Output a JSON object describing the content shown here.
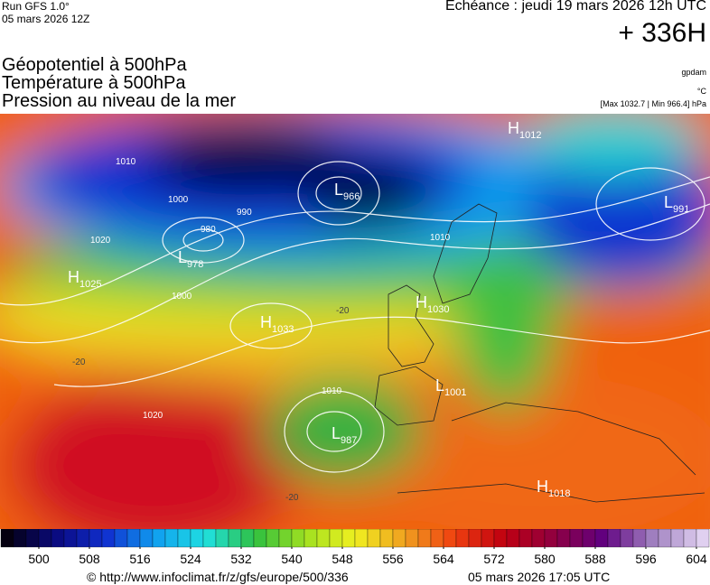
{
  "header": {
    "run": "Run GFS 1.0°",
    "run_date": "05 mars 2026 12Z",
    "valid": "Echéance : jeudi 19 mars 2026 12h UTC",
    "lead": "+ 336H"
  },
  "titles": [
    "Géopotentiel à 500hPa",
    "Température à 500hPa",
    "Pression au niveau de la mer"
  ],
  "units": {
    "geo": "gpdam",
    "temp": "°C",
    "pressure": "[Max 1032.7 | Min 966.4] hPa"
  },
  "centers": [
    {
      "kind": "H",
      "value": "1012"
    },
    {
      "kind": "L",
      "value": "991"
    },
    {
      "kind": "L",
      "value": "966"
    },
    {
      "kind": "L",
      "value": "978"
    },
    {
      "kind": "H",
      "value": "1025"
    },
    {
      "kind": "H",
      "value": "1033"
    },
    {
      "kind": "H",
      "value": "1030"
    },
    {
      "kind": "L",
      "value": "1001"
    },
    {
      "kind": "L",
      "value": "987"
    },
    {
      "kind": "H",
      "value": "1018"
    }
  ],
  "isobar_labels": [
    "1010",
    "1000",
    "990",
    "980",
    "1010",
    "1020",
    "1020",
    "1010",
    "1000",
    "-20",
    "-20",
    "-20"
  ],
  "colorbar": {
    "range": [
      494,
      606
    ],
    "step": 2,
    "ticks": [
      500,
      508,
      516,
      524,
      532,
      540,
      548,
      556,
      564,
      572,
      580,
      588,
      596,
      604
    ],
    "color_stops": [
      "#050010",
      "#0a0a80",
      "#1030d0",
      "#10a0f0",
      "#20e0e0",
      "#30c040",
      "#a0e020",
      "#f0f020",
      "#f0a020",
      "#f04010",
      "#c00010",
      "#900040",
      "#600080",
      "#a080c0",
      "#e0d0f0"
    ]
  },
  "footer": {
    "source": "© http://www.infoclimat.fr/z/gfs/europe/500/336",
    "generated": "05 mars 2026 17:05 UTC"
  }
}
